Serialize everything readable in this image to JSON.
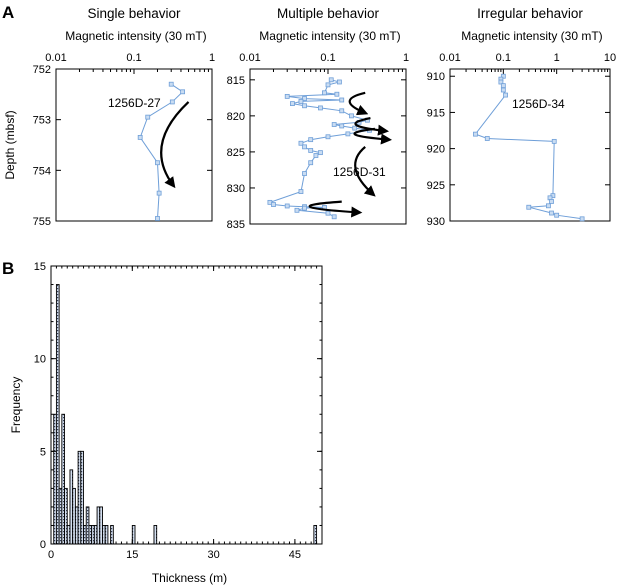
{
  "figure": {
    "panel_a_label": "A",
    "panel_b_label": "B",
    "line_color": "#6f9fd8",
    "marker_fill": "#c9dcf2",
    "arrow_color": "#000000"
  },
  "chart_data": [
    {
      "type": "line",
      "panel": "A",
      "title": "Single behavior",
      "xlabel": "Magnetic intensity (30 mT)",
      "ylabel": "Depth (mbsf)",
      "x_scale": "log",
      "xlim": [
        0.01,
        1
      ],
      "ylim": [
        755,
        752
      ],
      "x_tick_labels": [
        "0.01",
        "0.1",
        "1"
      ],
      "y_tick_labels": [
        "752",
        "753",
        "754",
        "755"
      ],
      "annotation": "1256D-27",
      "series": [
        {
          "x": [
            0.3,
            0.42,
            0.31,
            0.15,
            0.12,
            0.2,
            0.21,
            0.2
          ],
          "y": [
            752.3,
            752.45,
            752.65,
            752.95,
            753.35,
            753.85,
            754.45,
            754.95
          ]
        }
      ],
      "arrows": [
        {
          "path": [
            [
              0.5,
              752.65
            ],
            [
              0.13,
              753.5
            ],
            [
              0.32,
              754.3
            ]
          ]
        }
      ]
    },
    {
      "type": "line",
      "panel": "A",
      "title": "Multiple behavior",
      "xlabel": "Magnetic intensity (30 mT)",
      "ylabel": "",
      "x_scale": "log",
      "xlim": [
        0.01,
        1
      ],
      "ylim": [
        835,
        813.5
      ],
      "x_tick_labels": [
        "0.01",
        "0.1",
        "1"
      ],
      "y_tick_labels": [
        "815",
        "820",
        "825",
        "830",
        "835"
      ],
      "annotation": "1256D-31",
      "series": [
        {
          "x": [
            0.11,
            0.14,
            0.1,
            0.09,
            0.13,
            0.03,
            0.05,
            0.15,
            0.045,
            0.035,
            0.05,
            0.08,
            0.15,
            0.2,
            0.32,
            0.25,
            0.12,
            0.15,
            0.22,
            0.34,
            0.18,
            0.1,
            0.06,
            0.045,
            0.05,
            0.06,
            0.08,
            0.07,
            0.06,
            0.05,
            0.045,
            0.018,
            0.02,
            0.03,
            0.05,
            0.09,
            0.05,
            0.04,
            0.1,
            0.12
          ],
          "y": [
            815.0,
            815.3,
            815.7,
            816.8,
            817.0,
            817.3,
            817.6,
            817.8,
            818.0,
            818.3,
            818.6,
            818.9,
            819.3,
            820.0,
            820.6,
            820.9,
            821.2,
            821.4,
            821.7,
            822.0,
            822.5,
            822.9,
            823.3,
            823.8,
            824.3,
            824.8,
            825.1,
            825.5,
            826.5,
            828.0,
            830.5,
            832.0,
            832.3,
            832.5,
            832.6,
            832.7,
            832.8,
            833.1,
            833.5,
            834.0
          ]
        }
      ],
      "arrows": [
        {
          "path": [
            [
              0.3,
              816.8
            ],
            [
              0.12,
              817.8
            ],
            [
              0.3,
              819.6
            ]
          ]
        },
        {
          "path": [
            [
              0.35,
              820.3
            ],
            [
              0.12,
              821.3
            ],
            [
              0.55,
              822.1
            ]
          ]
        },
        {
          "path": [
            [
              0.4,
              821.8
            ],
            [
              0.1,
              822.6
            ],
            [
              0.6,
              823.3
            ]
          ]
        },
        {
          "path": [
            [
              0.3,
              824.3
            ],
            [
              0.15,
              827.0
            ],
            [
              0.38,
              830.9
            ]
          ]
        },
        {
          "path": [
            [
              0.15,
              831.9
            ],
            [
              0.018,
              832.6
            ],
            [
              0.25,
              833.4
            ]
          ]
        }
      ]
    },
    {
      "type": "line",
      "panel": "A",
      "title": "Irregular behavior",
      "xlabel": "Magnetic intensity (30 mT)",
      "ylabel": "",
      "x_scale": "log",
      "xlim": [
        0.01,
        10
      ],
      "ylim": [
        930,
        909
      ],
      "x_tick_labels": [
        "0.01",
        "0.1",
        "1",
        "10"
      ],
      "y_tick_labels": [
        "910",
        "915",
        "920",
        "925",
        "930"
      ],
      "annotation": "1256D-34",
      "series": [
        {
          "x": [
            0.1,
            0.09,
            0.09,
            0.1,
            0.1,
            0.11,
            0.03,
            0.05,
            0.9,
            0.85,
            0.75,
            0.8,
            0.7,
            0.3,
            0.8,
            1.0,
            3.0
          ],
          "y": [
            910.0,
            910.4,
            910.8,
            911.3,
            911.9,
            912.6,
            918.0,
            918.6,
            919.0,
            926.5,
            926.8,
            927.3,
            927.9,
            928.1,
            928.9,
            929.2,
            929.7
          ]
        }
      ],
      "arrows": []
    },
    {
      "type": "bar",
      "panel": "B",
      "title": "",
      "xlabel": "Thickness (m)",
      "ylabel": "Frequency",
      "xlim": [
        0,
        50
      ],
      "ylim": [
        0,
        15
      ],
      "x_tick_labels": [
        "0",
        "15",
        "30",
        "45"
      ],
      "y_tick_labels": [
        "0",
        "5",
        "10",
        "15"
      ],
      "bin_width": 0.5,
      "bin_starts": [
        0.5,
        1.0,
        1.5,
        2.0,
        2.5,
        3.0,
        3.5,
        4.0,
        4.5,
        5.0,
        5.5,
        6.0,
        6.5,
        7.0,
        7.5,
        8.0,
        8.5,
        9.0,
        9.5,
        10.0,
        11.0,
        15.0,
        19.0,
        48.5
      ],
      "values": [
        7,
        14,
        3,
        7,
        3,
        1,
        4,
        3,
        2,
        5,
        5,
        1,
        2,
        1,
        1,
        1,
        2,
        2,
        1,
        1,
        1,
        1,
        1,
        1
      ]
    }
  ]
}
